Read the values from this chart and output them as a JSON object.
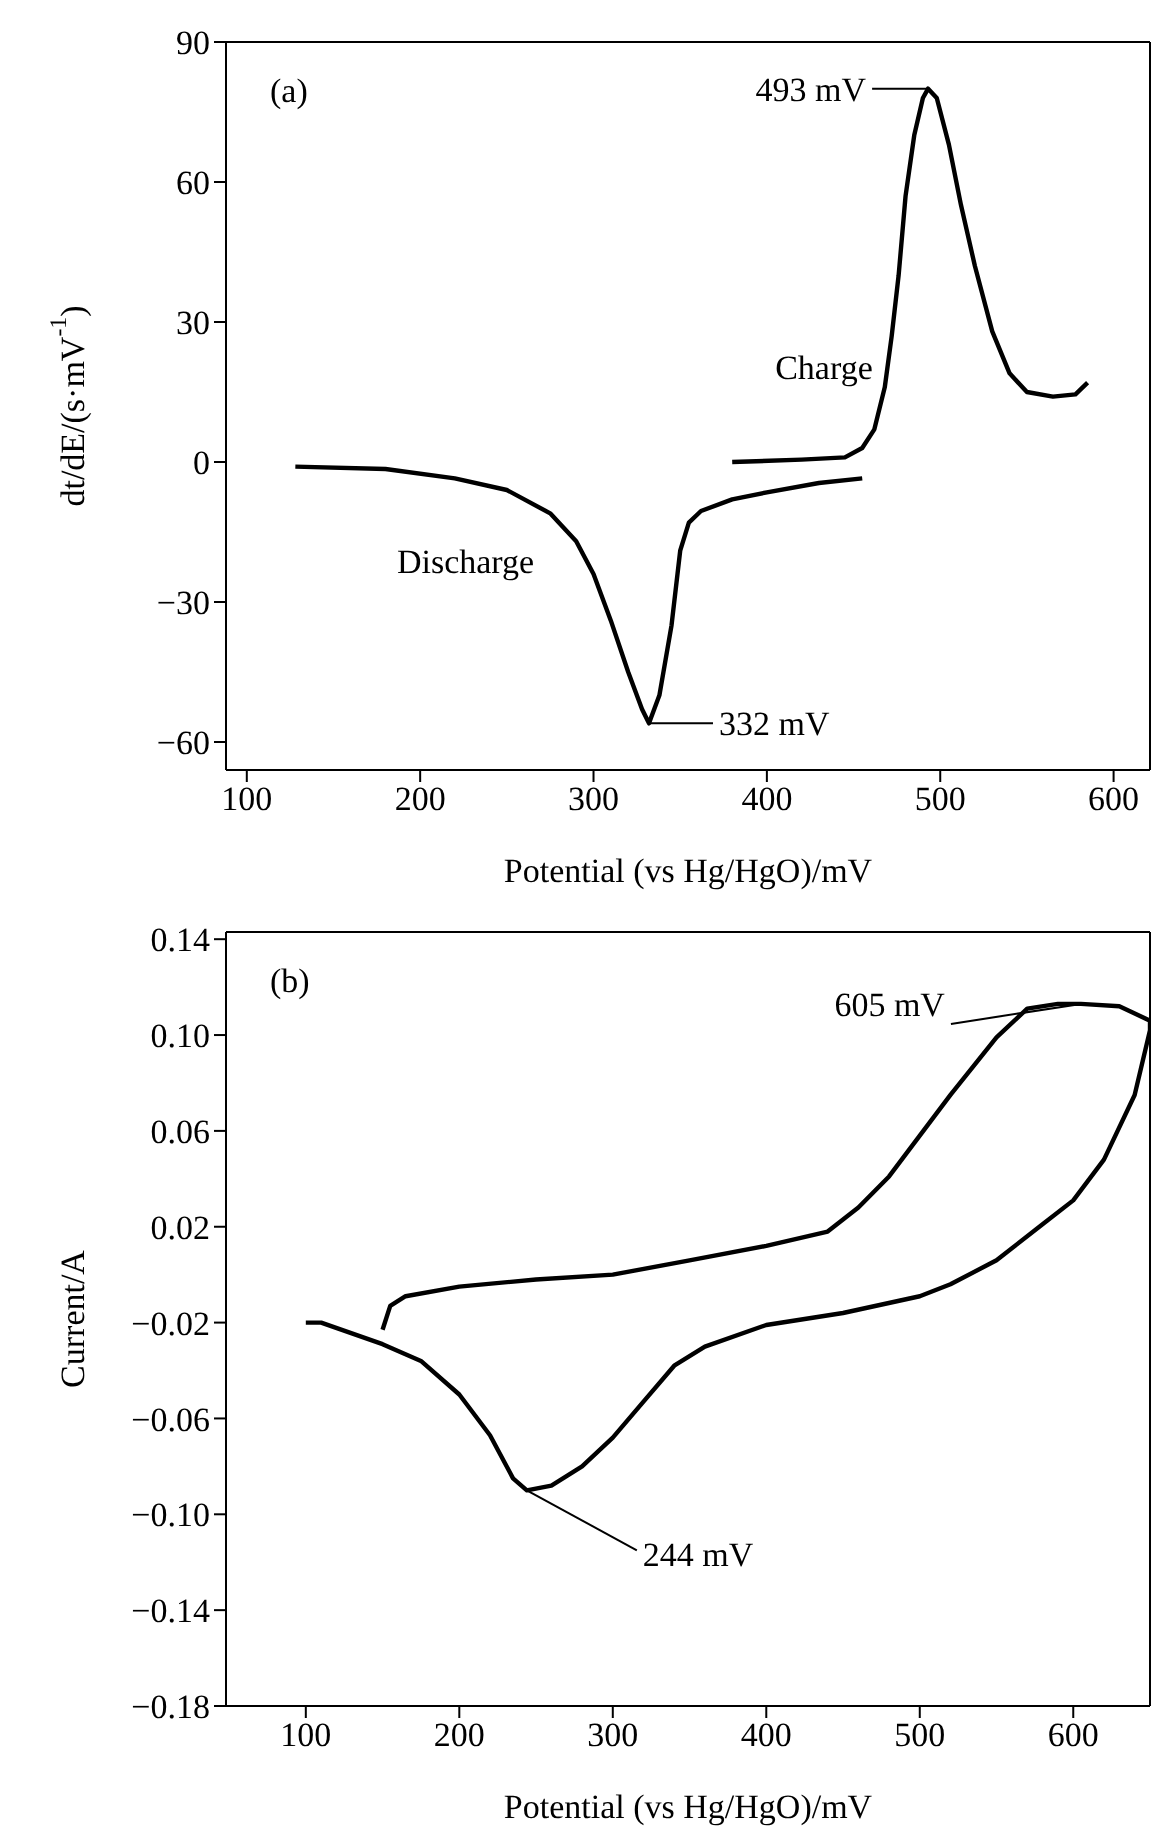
{
  "chart_data": [
    {
      "type": "line",
      "title": "(a)",
      "xlabel": "Potential (vs Hg/HgO)/mV",
      "ylabel": "dt/dE/(s·mV$^{-1}$)",
      "xlim": [
        88,
        621
      ],
      "ylim": [
        -66,
        90
      ],
      "xticks": [
        100,
        200,
        300,
        400,
        500,
        600
      ],
      "yticks": [
        {
          "value": -60,
          "label": "−60"
        },
        {
          "value": -30,
          "label": "−30"
        },
        0,
        30,
        60,
        90
      ],
      "marker": "none",
      "line_style": "solid",
      "series": [
        {
          "name": "Discharge",
          "color": "#000000",
          "x": [
            128,
            180,
            220,
            250,
            275,
            290,
            300,
            310,
            320,
            328,
            332,
            338,
            345,
            350,
            355,
            362,
            380,
            400,
            430,
            455
          ],
          "values": [
            -1,
            -1.5,
            -3.5,
            -6,
            -11,
            -17,
            -24,
            -34,
            -45,
            -53,
            -56,
            -50,
            -35,
            -19,
            -13,
            -10.5,
            -8,
            -6.5,
            -4.5,
            -3.5
          ]
        },
        {
          "name": "Charge",
          "color": "#000000",
          "x": [
            380,
            420,
            445,
            455,
            462,
            468,
            472,
            476,
            480,
            485,
            490,
            493,
            498,
            505,
            512,
            520,
            530,
            540,
            550,
            565,
            578,
            585
          ],
          "values": [
            0,
            0.5,
            1,
            3,
            7,
            16,
            27,
            40,
            57,
            70,
            78,
            80,
            78,
            68,
            55,
            42,
            28,
            19,
            15,
            14,
            14.5,
            17
          ]
        }
      ],
      "annotations": [
        {
          "text": "493 mV",
          "x": 493,
          "y": 80
        },
        {
          "text": "332 mV",
          "x": 332,
          "y": -56
        }
      ]
    },
    {
      "type": "line",
      "title": "(b)",
      "xlabel": "Potential (vs Hg/HgO)/mV",
      "ylabel": "Current/A",
      "xlim": [
        48,
        650
      ],
      "ylim": [
        -0.18,
        0.143
      ],
      "xticks": [
        100,
        200,
        300,
        400,
        500,
        600
      ],
      "yticks": [
        {
          "value": -0.18,
          "label": "−0.18"
        },
        {
          "value": -0.14,
          "label": "−0.14"
        },
        {
          "value": -0.1,
          "label": "−0.10"
        },
        {
          "value": -0.06,
          "label": "−0.06"
        },
        {
          "value": -0.02,
          "label": "−0.02"
        },
        {
          "value": 0.02,
          "label": "0.02"
        },
        {
          "value": 0.06,
          "label": "0.06"
        },
        {
          "value": 0.1,
          "label": "0.10"
        },
        {
          "value": 0.14,
          "label": "0.14"
        }
      ],
      "marker": "none",
      "line_style": "solid",
      "series": [
        {
          "color": "#000000",
          "x": [
            100,
            110,
            150,
            175,
            200,
            220,
            235,
            244,
            260,
            280,
            300,
            320,
            340,
            360,
            400,
            450,
            500,
            520,
            550,
            580,
            600,
            620,
            640,
            650,
            650,
            630,
            605,
            590,
            570,
            550,
            520,
            500,
            480,
            460,
            440,
            400,
            350,
            300,
            250,
            200,
            165,
            155,
            150
          ],
          "values": [
            -0.02,
            -0.02,
            -0.029,
            -0.036,
            -0.05,
            -0.067,
            -0.085,
            -0.09,
            -0.088,
            -0.08,
            -0.068,
            -0.053,
            -0.038,
            -0.03,
            -0.021,
            -0.016,
            -0.009,
            -0.004,
            0.006,
            0.021,
            0.031,
            0.048,
            0.075,
            0.102,
            0.106,
            0.112,
            0.113,
            0.113,
            0.111,
            0.099,
            0.075,
            0.058,
            0.041,
            0.028,
            0.018,
            0.012,
            0.006,
            0,
            -0.002,
            -0.005,
            -0.009,
            -0.013,
            -0.023
          ]
        }
      ],
      "annotations": [
        {
          "text": "605 mV",
          "x": 605,
          "y": 0.113
        },
        {
          "text": "244 mV",
          "x": 244,
          "y": -0.09
        }
      ]
    }
  ]
}
